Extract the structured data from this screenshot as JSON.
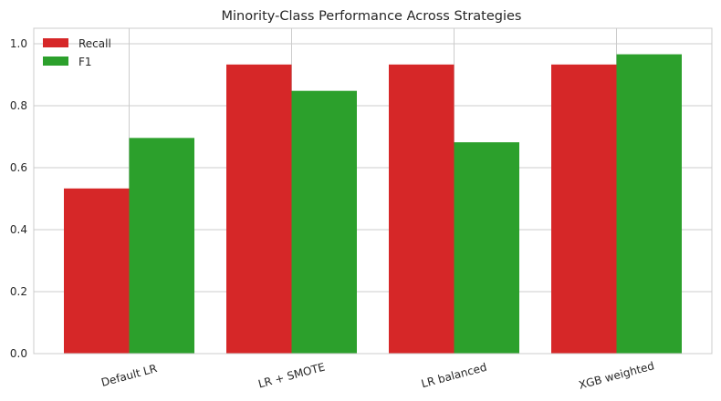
{
  "chart_data": {
    "type": "bar",
    "title": "Minority-Class Performance Across Strategies",
    "xlabel": "",
    "ylabel": "",
    "categories": [
      "Default LR",
      "LR + SMOTE",
      "LR balanced",
      "XGB weighted"
    ],
    "series": [
      {
        "name": "Recall",
        "color": "#d62728",
        "values": [
          0.533,
          0.933,
          0.933,
          0.933
        ]
      },
      {
        "name": "F1",
        "color": "#2ca02c",
        "values": [
          0.696,
          0.848,
          0.682,
          0.966
        ]
      }
    ],
    "ylim": [
      0,
      1.05
    ],
    "yticks": [
      "0.0",
      "0.2",
      "0.4",
      "0.6",
      "0.8",
      "1.0"
    ],
    "grid": true,
    "legend_position": "top-left",
    "xtick_rotation": 15
  }
}
